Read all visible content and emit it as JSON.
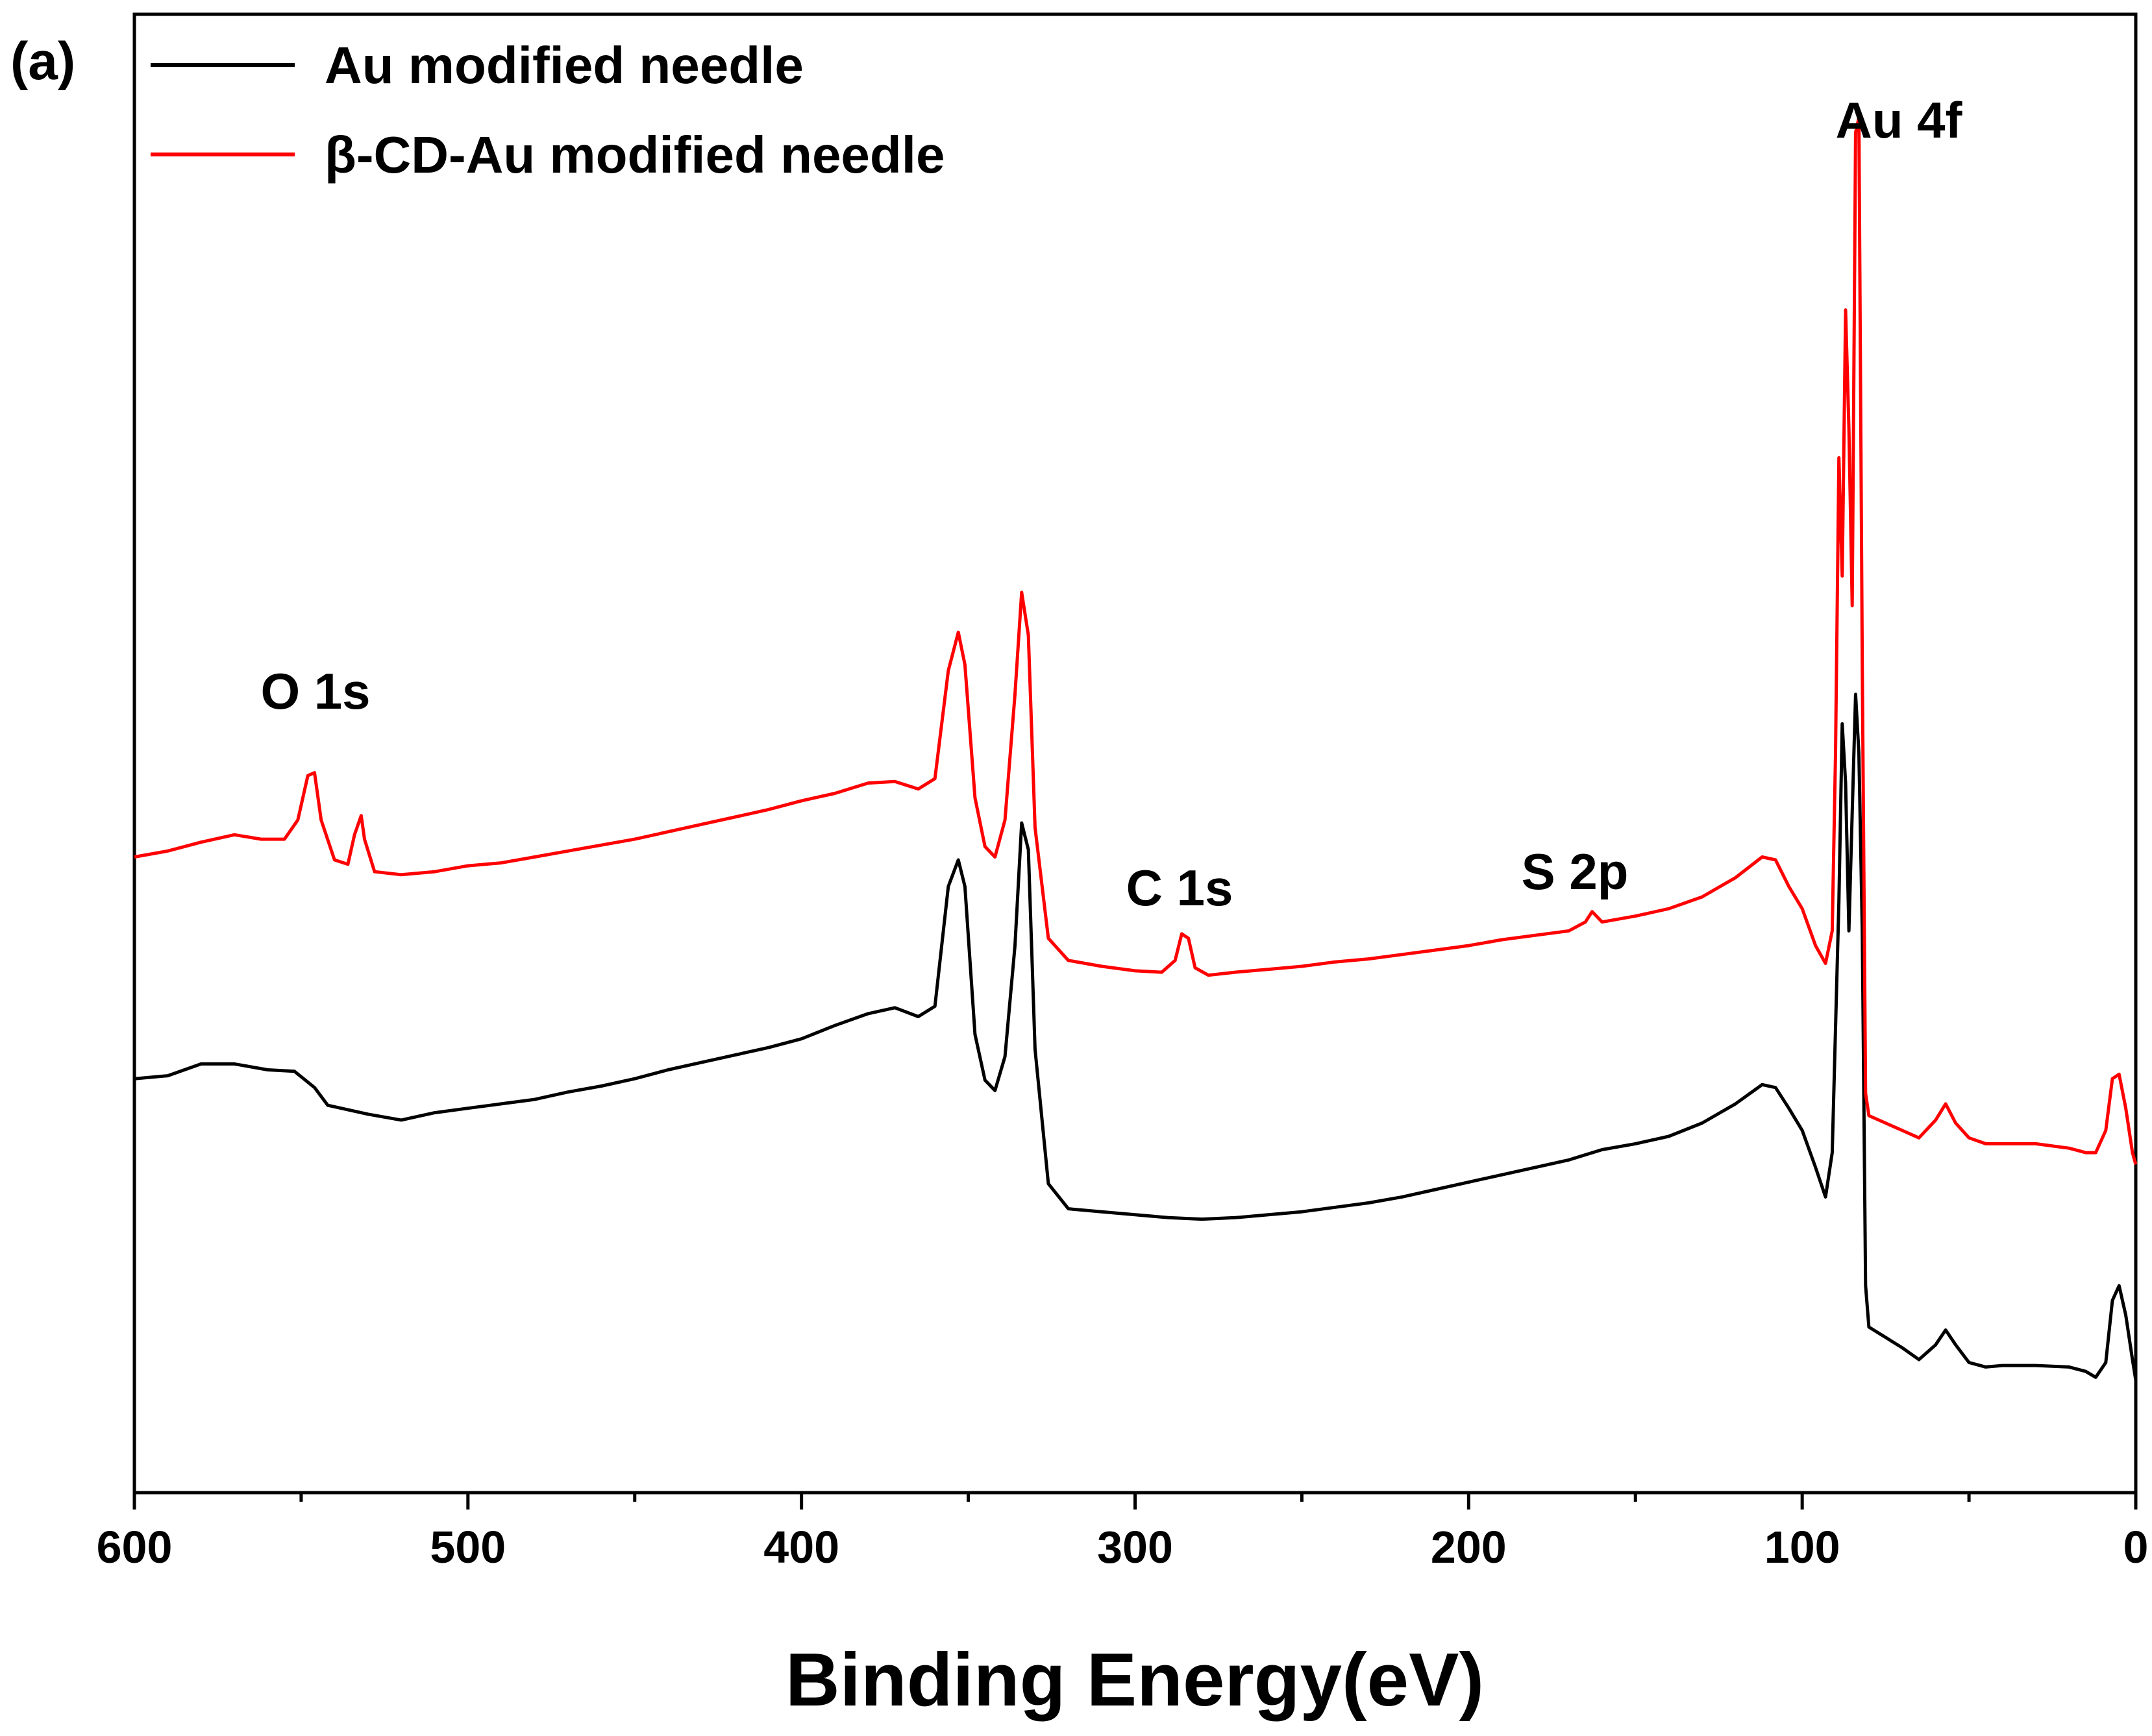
{
  "chart_data": {
    "type": "line",
    "panel_label": "(a)",
    "title": "",
    "xlabel": "Binding Energy(eV)",
    "ylabel": "",
    "xlim": [
      600,
      0
    ],
    "x_reversed": true,
    "ylim": [
      0,
      100
    ],
    "y_ticks_shown": false,
    "grid": false,
    "x_ticks": [
      "600",
      "500",
      "400",
      "300",
      "200",
      "100",
      "0"
    ],
    "x_tick_values": [
      600,
      500,
      400,
      300,
      200,
      100,
      0
    ],
    "legend": {
      "position": "top-left",
      "entries": [
        "Au modified needle",
        "β-CD-Au modified needle"
      ]
    },
    "annotations": [
      {
        "text": "O 1s",
        "x": 546
      },
      {
        "text": "C 1s",
        "x": 285
      },
      {
        "text": "S 2p",
        "x": 164
      },
      {
        "text": "Au 4f",
        "x": 84
      }
    ],
    "series": [
      {
        "name": "Au modified needle",
        "color": "#000000",
        "points": [
          [
            600,
            28.0
          ],
          [
            590,
            28.2
          ],
          [
            580,
            29.0
          ],
          [
            570,
            29.0
          ],
          [
            560,
            28.6
          ],
          [
            552,
            28.5
          ],
          [
            546,
            27.4
          ],
          [
            542,
            26.2
          ],
          [
            530,
            25.6
          ],
          [
            520,
            25.2
          ],
          [
            510,
            25.7
          ],
          [
            500,
            26.0
          ],
          [
            490,
            26.3
          ],
          [
            480,
            26.6
          ],
          [
            470,
            27.1
          ],
          [
            460,
            27.5
          ],
          [
            450,
            28.0
          ],
          [
            440,
            28.6
          ],
          [
            430,
            29.1
          ],
          [
            420,
            29.6
          ],
          [
            410,
            30.1
          ],
          [
            400,
            30.7
          ],
          [
            390,
            31.6
          ],
          [
            380,
            32.4
          ],
          [
            372,
            32.8
          ],
          [
            365,
            32.2
          ],
          [
            360,
            32.9
          ],
          [
            356,
            41.0
          ],
          [
            353,
            42.8
          ],
          [
            351,
            41.0
          ],
          [
            348,
            31.0
          ],
          [
            345,
            27.9
          ],
          [
            342,
            27.2
          ],
          [
            339,
            29.5
          ],
          [
            336,
            37.0
          ],
          [
            334,
            45.3
          ],
          [
            332,
            43.5
          ],
          [
            330,
            30.0
          ],
          [
            326,
            20.9
          ],
          [
            320,
            19.2
          ],
          [
            310,
            19.0
          ],
          [
            300,
            18.8
          ],
          [
            290,
            18.6
          ],
          [
            280,
            18.5
          ],
          [
            270,
            18.6
          ],
          [
            260,
            18.8
          ],
          [
            250,
            19.0
          ],
          [
            240,
            19.3
          ],
          [
            230,
            19.6
          ],
          [
            220,
            20.0
          ],
          [
            210,
            20.5
          ],
          [
            200,
            21.0
          ],
          [
            190,
            21.5
          ],
          [
            180,
            22.0
          ],
          [
            170,
            22.5
          ],
          [
            160,
            23.2
          ],
          [
            150,
            23.6
          ],
          [
            140,
            24.1
          ],
          [
            130,
            25.0
          ],
          [
            120,
            26.3
          ],
          [
            112,
            27.6
          ],
          [
            108,
            27.4
          ],
          [
            104,
            26.0
          ],
          [
            100,
            24.5
          ],
          [
            96,
            22.0
          ],
          [
            93,
            20.0
          ],
          [
            91,
            23.0
          ],
          [
            89,
            40.0
          ],
          [
            88,
            52.0
          ],
          [
            87,
            48.0
          ],
          [
            86,
            38.0
          ],
          [
            85,
            46.0
          ],
          [
            84,
            54.0
          ],
          [
            83,
            50.0
          ],
          [
            82,
            38.0
          ],
          [
            81,
            14.0
          ],
          [
            80,
            11.2
          ],
          [
            75,
            10.5
          ],
          [
            70,
            9.8
          ],
          [
            65,
            9.0
          ],
          [
            60,
            10.0
          ],
          [
            57,
            11.0
          ],
          [
            54,
            10.0
          ],
          [
            50,
            8.8
          ],
          [
            45,
            8.5
          ],
          [
            40,
            8.6
          ],
          [
            30,
            8.6
          ],
          [
            20,
            8.5
          ],
          [
            15,
            8.2
          ],
          [
            12,
            7.8
          ],
          [
            9,
            8.8
          ],
          [
            7,
            13.0
          ],
          [
            5,
            14.0
          ],
          [
            3,
            12.0
          ],
          [
            1,
            9.0
          ],
          [
            0,
            7.6
          ]
        ]
      },
      {
        "name": "β-CD-Au modified needle",
        "color": "#ff0000",
        "points": [
          [
            600,
            43.0
          ],
          [
            590,
            43.4
          ],
          [
            580,
            44.0
          ],
          [
            570,
            44.5
          ],
          [
            562,
            44.2
          ],
          [
            555,
            44.2
          ],
          [
            551,
            45.5
          ],
          [
            548,
            48.5
          ],
          [
            546,
            48.7
          ],
          [
            544,
            45.5
          ],
          [
            540,
            42.8
          ],
          [
            536,
            42.5
          ],
          [
            534,
            44.5
          ],
          [
            532,
            45.8
          ],
          [
            531,
            44.2
          ],
          [
            528,
            42.0
          ],
          [
            520,
            41.8
          ],
          [
            510,
            42.0
          ],
          [
            500,
            42.4
          ],
          [
            490,
            42.6
          ],
          [
            480,
            43.0
          ],
          [
            470,
            43.4
          ],
          [
            460,
            43.8
          ],
          [
            450,
            44.2
          ],
          [
            440,
            44.7
          ],
          [
            430,
            45.2
          ],
          [
            420,
            45.7
          ],
          [
            410,
            46.2
          ],
          [
            400,
            46.8
          ],
          [
            390,
            47.3
          ],
          [
            380,
            48.0
          ],
          [
            372,
            48.1
          ],
          [
            365,
            47.6
          ],
          [
            360,
            48.3
          ],
          [
            356,
            55.6
          ],
          [
            353,
            58.2
          ],
          [
            351,
            56.0
          ],
          [
            348,
            47.0
          ],
          [
            345,
            43.7
          ],
          [
            342,
            43.0
          ],
          [
            339,
            45.5
          ],
          [
            336,
            54.0
          ],
          [
            334,
            60.9
          ],
          [
            332,
            58.0
          ],
          [
            330,
            45.0
          ],
          [
            326,
            37.5
          ],
          [
            320,
            36.0
          ],
          [
            310,
            35.6
          ],
          [
            300,
            35.3
          ],
          [
            292,
            35.2
          ],
          [
            288,
            36.0
          ],
          [
            286,
            37.8
          ],
          [
            284,
            37.5
          ],
          [
            282,
            35.5
          ],
          [
            278,
            35.0
          ],
          [
            270,
            35.2
          ],
          [
            260,
            35.4
          ],
          [
            250,
            35.6
          ],
          [
            240,
            35.9
          ],
          [
            230,
            36.1
          ],
          [
            220,
            36.4
          ],
          [
            210,
            36.7
          ],
          [
            200,
            37.0
          ],
          [
            190,
            37.4
          ],
          [
            180,
            37.7
          ],
          [
            170,
            38.0
          ],
          [
            165,
            38.6
          ],
          [
            163,
            39.3
          ],
          [
            160,
            38.6
          ],
          [
            150,
            39.0
          ],
          [
            140,
            39.5
          ],
          [
            130,
            40.3
          ],
          [
            120,
            41.6
          ],
          [
            112,
            43.0
          ],
          [
            108,
            42.8
          ],
          [
            104,
            41.0
          ],
          [
            100,
            39.5
          ],
          [
            96,
            37.0
          ],
          [
            93,
            35.8
          ],
          [
            91,
            38.0
          ],
          [
            90,
            50.0
          ],
          [
            89,
            70.0
          ],
          [
            88,
            62.0
          ],
          [
            87,
            80.0
          ],
          [
            86,
            72.0
          ],
          [
            85,
            60.0
          ],
          [
            84,
            92.0
          ],
          [
            83,
            93.0
          ],
          [
            82,
            56.0
          ],
          [
            81,
            27.0
          ],
          [
            80,
            25.5
          ],
          [
            75,
            25.0
          ],
          [
            70,
            24.5
          ],
          [
            65,
            24.0
          ],
          [
            60,
            25.2
          ],
          [
            57,
            26.3
          ],
          [
            54,
            25.0
          ],
          [
            50,
            24.0
          ],
          [
            45,
            23.6
          ],
          [
            40,
            23.6
          ],
          [
            30,
            23.6
          ],
          [
            20,
            23.3
          ],
          [
            15,
            23.0
          ],
          [
            12,
            23.0
          ],
          [
            9,
            24.5
          ],
          [
            7,
            28.0
          ],
          [
            5,
            28.3
          ],
          [
            3,
            26.0
          ],
          [
            1,
            23.0
          ],
          [
            0,
            22.2
          ]
        ]
      }
    ]
  }
}
